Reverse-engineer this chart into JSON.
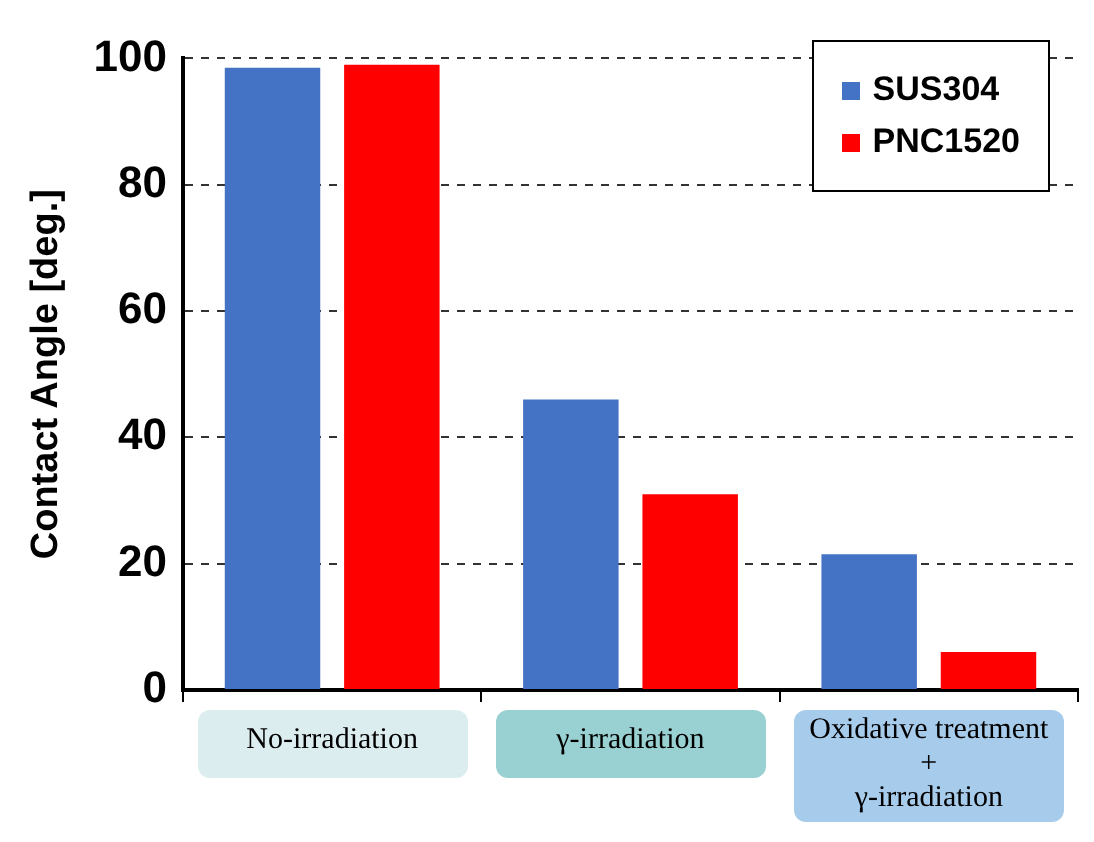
{
  "chart_data": {
    "type": "bar",
    "ylabel": "Contact Angle [deg.]",
    "categories": [
      "No-irradiation",
      "γ-irradiation",
      "Oxidative treatment\n+\nγ-irradiation"
    ],
    "series": [
      {
        "name": "SUS304",
        "color": "#4472c4",
        "values": [
          98.5,
          46,
          21.5
        ]
      },
      {
        "name": "PNC1520",
        "color": "#ff0000",
        "values": [
          99,
          31,
          6
        ]
      }
    ],
    "ylim": [
      0,
      100
    ],
    "yticks": [
      0,
      20,
      40,
      60,
      80,
      100
    ],
    "grid": "y",
    "legend": "top right"
  }
}
